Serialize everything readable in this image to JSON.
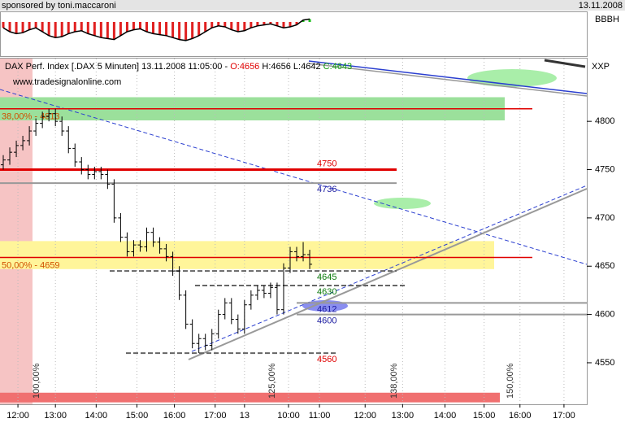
{
  "chart_data": {
    "type": "ohlc",
    "sponsor": "sponsored by toni.maccaroni",
    "date": "13.11.2008",
    "title": "DAX Perf. Index [.DAX  5 Minuten] 13.11.2008 11:05:00 -",
    "ohlc_text": [
      "O:4656",
      "H:4656",
      "L:4642",
      "C:4643"
    ],
    "website": "www.tradesignalonline.com",
    "symbol": "XXP",
    "indicator_label": "BBBH",
    "xlim": [
      0,
      180
    ],
    "ylim": [
      4507,
      4865
    ],
    "yticks": [
      4550,
      4600,
      4650,
      4700,
      4750,
      4800
    ],
    "xticks": [
      {
        "value": 5.5,
        "label": "12:00"
      },
      {
        "value": 17,
        "label": "13:00"
      },
      {
        "value": 29.5,
        "label": "14:00"
      },
      {
        "value": 42,
        "label": "15:00"
      },
      {
        "value": 53.5,
        "label": "16:00"
      },
      {
        "value": 66,
        "label": "17:00"
      },
      {
        "value": 75,
        "label": "13"
      },
      {
        "value": 88.5,
        "label": "10:00"
      },
      {
        "value": 98,
        "label": "11:00"
      },
      {
        "value": 112,
        "label": "12:00"
      },
      {
        "value": 123.5,
        "label": "13:00"
      },
      {
        "value": 136.5,
        "label": "14:00"
      },
      {
        "value": 148.5,
        "label": "15:00"
      },
      {
        "value": 159.5,
        "label": "16:00"
      },
      {
        "value": 173,
        "label": "17:00"
      }
    ],
    "x": [
      1,
      3,
      5,
      7,
      9,
      11,
      13,
      15,
      17,
      19,
      21,
      23,
      25,
      27,
      29,
      31,
      33,
      35,
      37,
      39,
      41,
      43,
      45,
      47,
      49,
      51,
      53,
      55,
      57,
      59,
      61,
      63,
      65,
      67,
      69,
      71,
      73,
      75,
      77,
      79,
      81,
      83,
      85,
      87,
      89,
      91,
      93,
      95
    ],
    "open": [
      4755,
      4760,
      4768,
      4775,
      4780,
      4790,
      4798,
      4805,
      4808,
      4800,
      4790,
      4772,
      4758,
      4750,
      4745,
      4748,
      4745,
      4735,
      4700,
      4680,
      4665,
      4672,
      4670,
      4685,
      4675,
      4668,
      4660,
      4645,
      4620,
      4590,
      4570,
      4575,
      4568,
      4580,
      4600,
      4612,
      4595,
      4585,
      4610,
      4620,
      4625,
      4622,
      4628,
      4605,
      4648,
      4665,
      4660,
      4662
    ],
    "high": [
      4765,
      4773,
      4780,
      4785,
      4795,
      4803,
      4810,
      4813,
      4813,
      4805,
      4795,
      4777,
      4763,
      4755,
      4753,
      4753,
      4750,
      4740,
      4705,
      4685,
      4677,
      4677,
      4690,
      4690,
      4680,
      4673,
      4665,
      4650,
      4625,
      4595,
      4580,
      4580,
      4585,
      4605,
      4617,
      4617,
      4600,
      4615,
      4625,
      4630,
      4630,
      4633,
      4633,
      4653,
      4670,
      4670,
      4675,
      4667
    ],
    "low": [
      4750,
      4755,
      4763,
      4770,
      4775,
      4785,
      4793,
      4800,
      4795,
      4785,
      4767,
      4753,
      4745,
      4740,
      4740,
      4740,
      4730,
      4695,
      4675,
      4660,
      4660,
      4665,
      4665,
      4670,
      4663,
      4655,
      4640,
      4615,
      4585,
      4565,
      4560,
      4563,
      4563,
      4575,
      4595,
      4590,
      4580,
      4580,
      4605,
      4615,
      4617,
      4617,
      4600,
      4600,
      4643,
      4655,
      4655,
      4647
    ],
    "close": [
      4760,
      4768,
      4775,
      4780,
      4790,
      4798,
      4805,
      4808,
      4800,
      4790,
      4772,
      4758,
      4750,
      4745,
      4748,
      4745,
      4735,
      4700,
      4680,
      4665,
      4672,
      4670,
      4685,
      4675,
      4668,
      4660,
      4645,
      4620,
      4590,
      4570,
      4575,
      4568,
      4580,
      4600,
      4612,
      4595,
      4585,
      4610,
      4620,
      4625,
      4622,
      4628,
      4605,
      4648,
      4665,
      4660,
      4662,
      4652
    ],
    "levels": [
      4750,
      4736,
      4645,
      4630,
      4612,
      4600,
      4560
    ],
    "level_colors": [
      "#e00000",
      "#1a1aa0",
      "#0a7a0a",
      "#0a7a0a",
      "#1a1aa0",
      "#1a1aa0",
      "#e00000"
    ],
    "fib_levels": [
      {
        "value": 4813,
        "label": "38,00% - 4813"
      },
      {
        "value": 4659,
        "label": "50,00% - 4659"
      }
    ],
    "bands": [
      {
        "from": 4801,
        "to": 4825,
        "color": "#9be09b"
      },
      {
        "from": 4647,
        "to": 4676,
        "color": "#fff59a"
      },
      {
        "from": 4509,
        "to": 4519,
        "color": "#f07070"
      }
    ],
    "percent_labels": [
      "100,00%",
      "125,00%",
      "138,00%",
      "150,00%"
    ],
    "indicator": [
      0.3,
      0.5,
      0.6,
      0.55,
      0.4,
      0.3,
      0.5,
      0.7,
      0.8,
      0.75,
      0.6,
      0.5,
      0.45,
      0.6,
      0.7,
      0.8,
      0.85,
      0.9,
      0.7,
      0.5,
      0.4,
      0.35,
      0.5,
      0.6,
      0.65,
      0.7,
      0.8,
      0.9,
      0.95,
      0.85,
      0.7,
      0.5,
      0.3,
      0.2,
      0.25,
      0.4,
      0.5,
      0.45,
      0.3,
      0.2,
      0.15,
      0.1,
      0.2,
      0.3,
      0.25,
      0.15,
      -0.1,
      -0.15
    ]
  }
}
